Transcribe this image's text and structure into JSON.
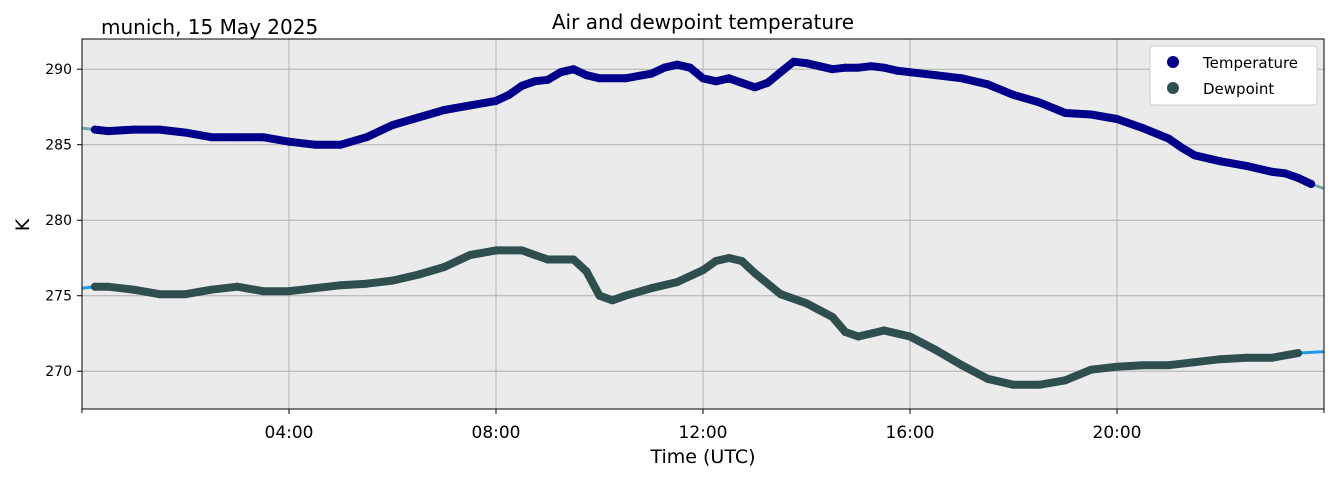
{
  "chart_data": {
    "type": "line",
    "title": "Air and dewpoint temperature",
    "subtitle": "munich, 15 May 2025",
    "xlabel": "Time (UTC)",
    "ylabel": "K",
    "xlim": [
      0.0,
      24.0
    ],
    "ylim": [
      267.5,
      292.0
    ],
    "x_ticks": [
      {
        "value": 4,
        "label": "04:00"
      },
      {
        "value": 8,
        "label": "08:00"
      },
      {
        "value": 12,
        "label": "12:00"
      },
      {
        "value": 16,
        "label": "16:00"
      },
      {
        "value": 20,
        "label": "20:00"
      }
    ],
    "x_minor_ticks": [
      0,
      24
    ],
    "y_ticks": [
      270,
      275,
      280,
      285,
      290
    ],
    "grid": true,
    "legend_position": "top-right",
    "series": [
      {
        "name": "Temperature",
        "color": "#00008b",
        "raw_color": "#6fa8a8",
        "x": [
          0.0,
          0.25,
          0.5,
          1.0,
          1.5,
          2.0,
          2.5,
          3.0,
          3.5,
          4.0,
          4.5,
          5.0,
          5.5,
          6.0,
          6.5,
          7.0,
          7.5,
          8.0,
          8.25,
          8.5,
          8.75,
          9.0,
          9.25,
          9.5,
          9.75,
          10.0,
          10.5,
          11.0,
          11.25,
          11.5,
          11.75,
          12.0,
          12.25,
          12.5,
          12.75,
          13.0,
          13.25,
          13.5,
          13.75,
          14.0,
          14.25,
          14.5,
          14.75,
          15.0,
          15.25,
          15.5,
          15.75,
          16.0,
          16.5,
          17.0,
          17.5,
          18.0,
          18.5,
          19.0,
          19.5,
          20.0,
          20.5,
          21.0,
          21.25,
          21.5,
          22.0,
          22.5,
          23.0,
          23.25,
          23.5,
          23.75,
          24.0
        ],
        "values": [
          286.1,
          286.0,
          285.9,
          286.0,
          286.0,
          285.8,
          285.5,
          285.5,
          285.5,
          285.2,
          285.0,
          285.0,
          285.5,
          286.3,
          286.8,
          287.3,
          287.6,
          287.9,
          288.3,
          288.9,
          289.2,
          289.3,
          289.8,
          290.0,
          289.6,
          289.4,
          289.4,
          289.7,
          290.1,
          290.3,
          290.1,
          289.4,
          289.2,
          289.4,
          289.1,
          288.8,
          289.1,
          289.8,
          290.5,
          290.4,
          290.2,
          290.0,
          290.1,
          290.1,
          290.2,
          290.1,
          289.9,
          289.8,
          289.6,
          289.4,
          289.0,
          288.3,
          287.8,
          287.1,
          287.0,
          286.7,
          286.1,
          285.4,
          284.8,
          284.3,
          283.9,
          283.6,
          283.2,
          283.1,
          282.8,
          282.4,
          282.1
        ]
      },
      {
        "name": "Dewpoint",
        "color": "#2f4f4f",
        "raw_color": "#1e9be6",
        "x": [
          0.0,
          0.25,
          0.5,
          1.0,
          1.5,
          2.0,
          2.5,
          3.0,
          3.5,
          4.0,
          4.5,
          5.0,
          5.5,
          6.0,
          6.5,
          7.0,
          7.5,
          8.0,
          8.5,
          8.75,
          9.0,
          9.25,
          9.5,
          9.75,
          10.0,
          10.25,
          10.5,
          11.0,
          11.5,
          12.0,
          12.25,
          12.5,
          12.75,
          13.0,
          13.5,
          14.0,
          14.5,
          14.75,
          15.0,
          15.5,
          16.0,
          16.5,
          17.0,
          17.5,
          18.0,
          18.5,
          19.0,
          19.5,
          20.0,
          20.5,
          21.0,
          21.5,
          22.0,
          22.5,
          23.0,
          23.5,
          24.0
        ],
        "values": [
          275.5,
          275.6,
          275.6,
          275.4,
          275.1,
          275.1,
          275.4,
          275.6,
          275.3,
          275.3,
          275.5,
          275.7,
          275.8,
          276.0,
          276.4,
          276.9,
          277.7,
          278.0,
          278.0,
          277.7,
          277.4,
          277.4,
          277.4,
          276.6,
          275.0,
          274.7,
          275.0,
          275.5,
          275.9,
          276.7,
          277.3,
          277.5,
          277.3,
          276.5,
          275.1,
          274.5,
          273.6,
          272.6,
          272.3,
          272.7,
          272.3,
          271.4,
          270.4,
          269.5,
          269.1,
          269.1,
          269.4,
          270.1,
          270.3,
          270.4,
          270.4,
          270.6,
          270.8,
          270.9,
          270.9,
          271.2,
          271.3
        ]
      }
    ]
  }
}
